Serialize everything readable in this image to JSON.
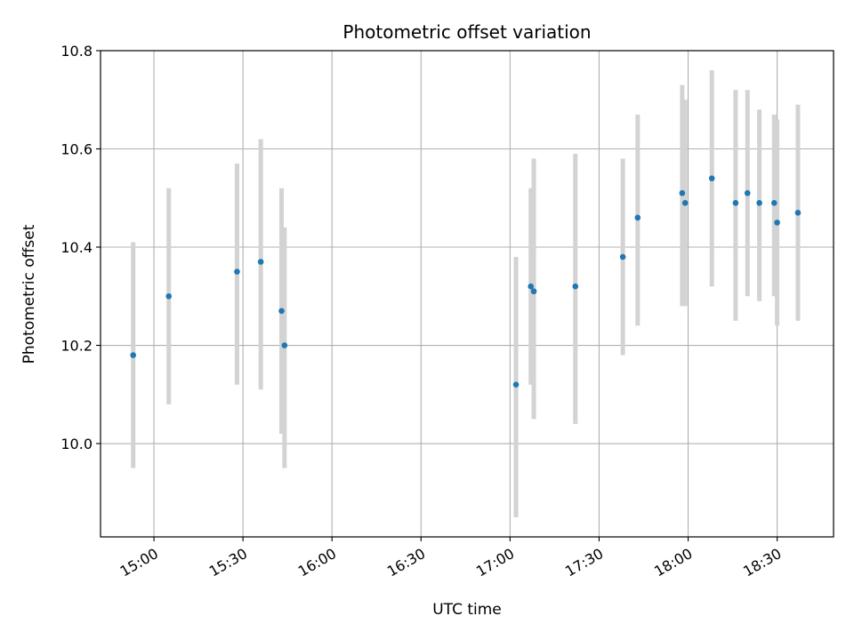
{
  "chart_data": {
    "type": "scatter",
    "title": "Photometric offset variation",
    "xlabel": "UTC time",
    "ylabel": "Photometric offset",
    "grid": true,
    "legend": "none",
    "xlim": [
      "14:42",
      "18:49"
    ],
    "ylim": [
      9.81,
      10.8
    ],
    "x_ticks": [
      "15:00",
      "15:30",
      "16:00",
      "16:30",
      "17:00",
      "17:30",
      "18:00",
      "18:30"
    ],
    "y_ticks": [
      10.0,
      10.2,
      10.4,
      10.6,
      10.8
    ],
    "colors": {
      "marker": "#1f77b4",
      "errorbar": "#d3d3d3",
      "grid": "#b0b0b0",
      "axes": "#000000"
    },
    "points": [
      {
        "x": "14:53",
        "y": 10.18,
        "ymin": 9.95,
        "ymax": 10.41
      },
      {
        "x": "15:05",
        "y": 10.3,
        "ymin": 10.08,
        "ymax": 10.52
      },
      {
        "x": "15:28",
        "y": 10.35,
        "ymin": 10.12,
        "ymax": 10.57
      },
      {
        "x": "15:36",
        "y": 10.37,
        "ymin": 10.11,
        "ymax": 10.62
      },
      {
        "x": "15:43",
        "y": 10.27,
        "ymin": 10.02,
        "ymax": 10.52
      },
      {
        "x": "15:44",
        "y": 10.2,
        "ymin": 9.95,
        "ymax": 10.44
      },
      {
        "x": "17:02",
        "y": 10.12,
        "ymin": 9.85,
        "ymax": 10.38
      },
      {
        "x": "17:07",
        "y": 10.32,
        "ymin": 10.12,
        "ymax": 10.52
      },
      {
        "x": "17:08",
        "y": 10.31,
        "ymin": 10.05,
        "ymax": 10.58
      },
      {
        "x": "17:22",
        "y": 10.32,
        "ymin": 10.04,
        "ymax": 10.59
      },
      {
        "x": "17:38",
        "y": 10.38,
        "ymin": 10.18,
        "ymax": 10.58
      },
      {
        "x": "17:43",
        "y": 10.46,
        "ymin": 10.24,
        "ymax": 10.67
      },
      {
        "x": "17:58",
        "y": 10.51,
        "ymin": 10.28,
        "ymax": 10.73
      },
      {
        "x": "17:59",
        "y": 10.49,
        "ymin": 10.28,
        "ymax": 10.7
      },
      {
        "x": "18:08",
        "y": 10.54,
        "ymin": 10.32,
        "ymax": 10.76
      },
      {
        "x": "18:16",
        "y": 10.49,
        "ymin": 10.25,
        "ymax": 10.72
      },
      {
        "x": "18:20",
        "y": 10.51,
        "ymin": 10.3,
        "ymax": 10.72
      },
      {
        "x": "18:24",
        "y": 10.49,
        "ymin": 10.29,
        "ymax": 10.68
      },
      {
        "x": "18:29",
        "y": 10.49,
        "ymin": 10.3,
        "ymax": 10.67
      },
      {
        "x": "18:30",
        "y": 10.45,
        "ymin": 10.24,
        "ymax": 10.66
      },
      {
        "x": "18:37",
        "y": 10.47,
        "ymin": 10.25,
        "ymax": 10.69
      }
    ]
  }
}
